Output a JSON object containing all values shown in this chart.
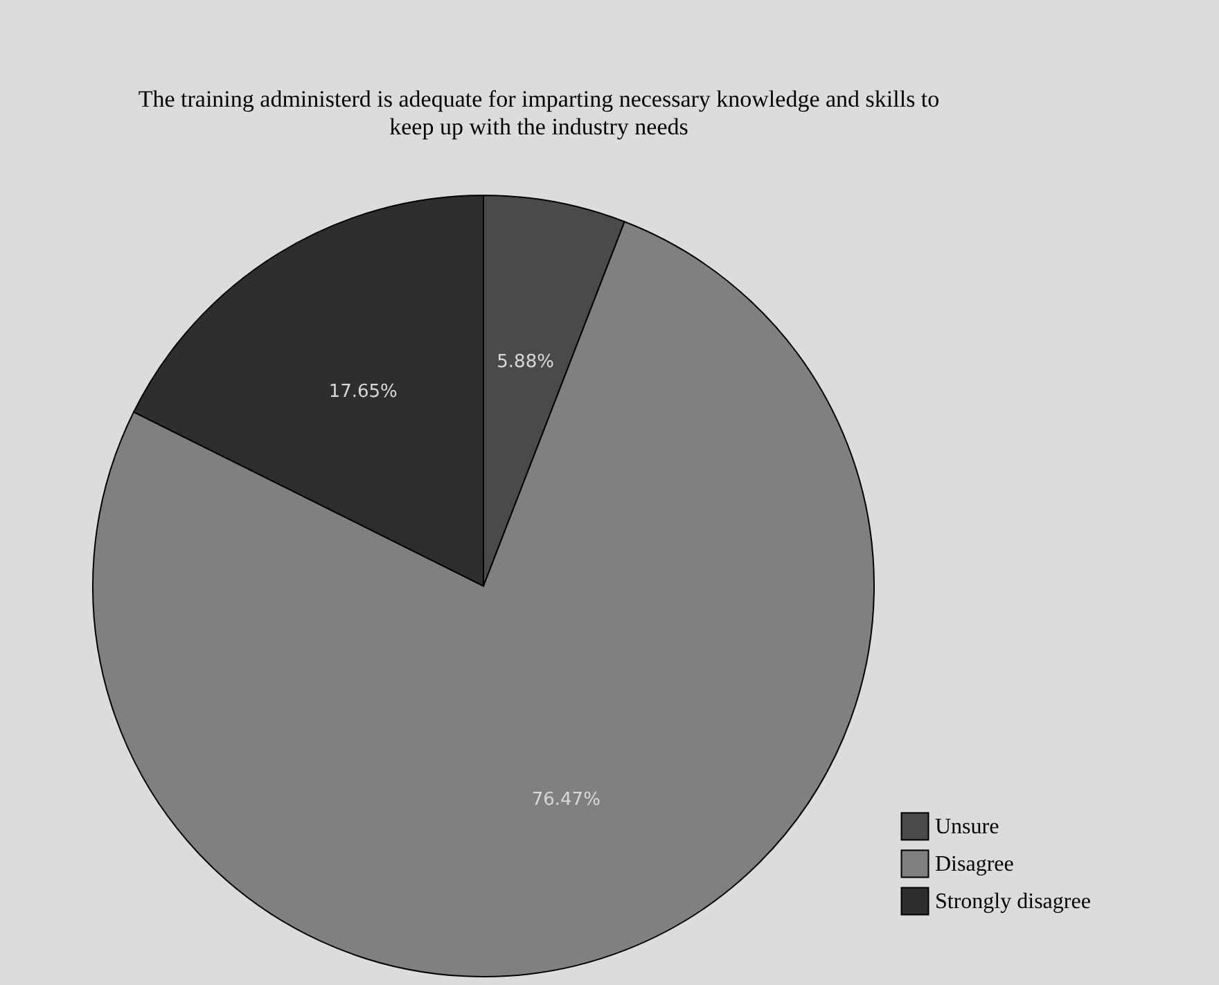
{
  "chart_data": {
    "type": "pie",
    "title": "The training administerd is adequate for imparting necessary knowledge and skills to\nkeep up with the industry needs",
    "categories": [
      "Unsure",
      "Disagree",
      "Strongly disagree"
    ],
    "values": [
      5.88,
      76.47,
      17.65
    ],
    "value_labels": [
      "5.88%",
      "76.47%",
      "17.65%"
    ],
    "colors": [
      "#4a4a4a",
      "#808080",
      "#2e2e2e"
    ],
    "legend": "bottom right"
  }
}
